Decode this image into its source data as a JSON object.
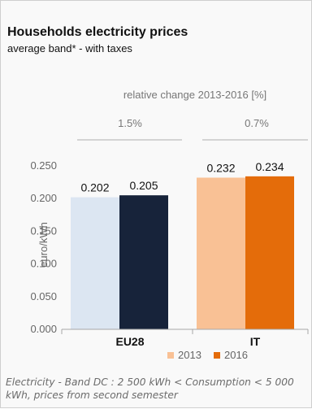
{
  "header": {
    "title": "Households electricity prices",
    "subtitle": "average band* - with taxes"
  },
  "change_header": "relative change 2013-2016 [%]",
  "relative_changes": [
    "1.5%",
    "0.7%"
  ],
  "chart_data": {
    "type": "bar",
    "ylabel": "euro/kWh",
    "categories": [
      "EU28",
      "IT"
    ],
    "ylim": [
      0,
      0.25
    ],
    "yticks": [
      0.0,
      0.05,
      0.1,
      0.15,
      0.2,
      0.25
    ],
    "ytick_labels": [
      "0.000",
      "0.050",
      "0.100",
      "0.150",
      "0.200",
      "0.250"
    ],
    "grid": false,
    "legend_position": "bottom",
    "series": [
      {
        "name": "2013",
        "values": [
          0.202,
          0.232
        ],
        "colors": [
          "#dce6f2",
          "#f9c195"
        ],
        "labels": [
          "0.202",
          "0.232"
        ]
      },
      {
        "name": "2016",
        "values": [
          0.205,
          0.234
        ],
        "colors": [
          "#17233a",
          "#e46c0a"
        ],
        "labels": [
          "0.205",
          "0.234"
        ]
      }
    ],
    "legend_colors": [
      "#f9c195",
      "#e46c0a"
    ]
  },
  "footnote": "Electricity - Band DC : 2 500 kWh < Consumption < 5 000 kWh, prices from second semester"
}
